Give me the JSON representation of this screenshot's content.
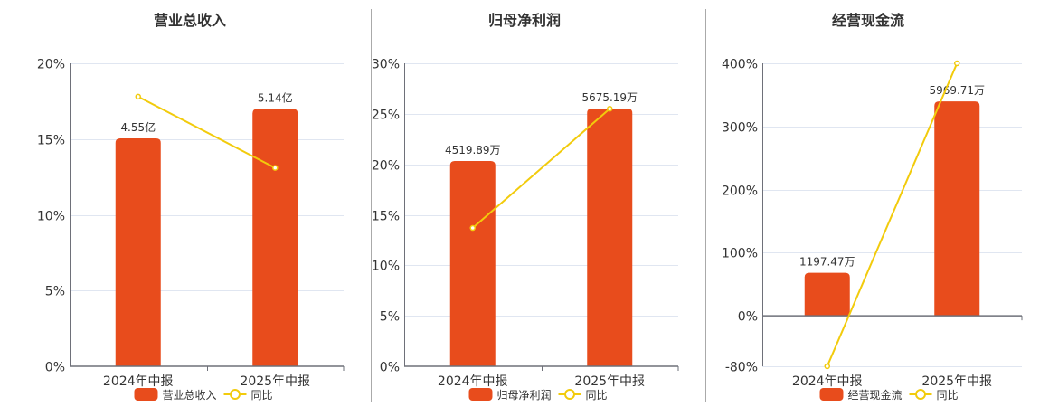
{
  "colors": {
    "bar": "#e84c1c",
    "line": "#f2cb0c",
    "grid": "#e0e6f1",
    "axis": "#6e7079",
    "divider": "#aaaaaa",
    "text": "#333333"
  },
  "legend_line_label": "同比",
  "chart_data": [
    {
      "type": "bar+line",
      "title": "营业总收入",
      "categories": [
        "2024年中报",
        "2025年中报"
      ],
      "bar_series": {
        "name": "营业总收入",
        "values": [
          4.55,
          5.14
        ],
        "unit": "亿",
        "labels": [
          "4.55亿",
          "5.14亿"
        ],
        "axis_range": [
          0,
          6.05
        ]
      },
      "line_series": {
        "name": "同比",
        "values": [
          17.8,
          13.1
        ],
        "unit": "%"
      },
      "yoy_axis": {
        "range": [
          0,
          20
        ],
        "ticks": [
          "0%",
          "5%",
          "10%",
          "15%",
          "20%"
        ],
        "tick_values": [
          0,
          5,
          10,
          15,
          20
        ]
      },
      "grid": true,
      "legend": "bottom"
    },
    {
      "type": "bar+line",
      "title": "归母净利润",
      "categories": [
        "2024年中报",
        "2025年中报"
      ],
      "bar_series": {
        "name": "归母净利润",
        "values": [
          4519.89,
          5675.19
        ],
        "unit": "万",
        "labels": [
          "4519.89万",
          "5675.19万"
        ],
        "axis_range": [
          0,
          6670
        ]
      },
      "line_series": {
        "name": "同比",
        "values": [
          13.7,
          25.5
        ],
        "unit": "%"
      },
      "yoy_axis": {
        "range": [
          0,
          30
        ],
        "ticks": [
          "0%",
          "5%",
          "10%",
          "15%",
          "20%",
          "25%",
          "30%"
        ],
        "tick_values": [
          0,
          5,
          10,
          15,
          20,
          25,
          30
        ]
      },
      "grid": true,
      "legend": "bottom"
    },
    {
      "type": "bar+line",
      "title": "经营现金流",
      "categories": [
        "2024年中报",
        "2025年中报"
      ],
      "bar_series": {
        "name": "经营现金流",
        "values": [
          1197.47,
          5969.71
        ],
        "unit": "万",
        "labels": [
          "1197.47万",
          "5969.71万"
        ],
        "axis_range": [
          -1406,
          7030
        ]
      },
      "line_series": {
        "name": "同比",
        "values": [
          -80,
          400
        ],
        "unit": "%"
      },
      "yoy_axis": {
        "range": [
          -80,
          400
        ],
        "ticks": [
          "-80%",
          "0%",
          "100%",
          "200%",
          "300%",
          "400%"
        ],
        "tick_values": [
          -80,
          0,
          100,
          200,
          300,
          400
        ]
      },
      "grid": true,
      "legend": "bottom"
    }
  ]
}
